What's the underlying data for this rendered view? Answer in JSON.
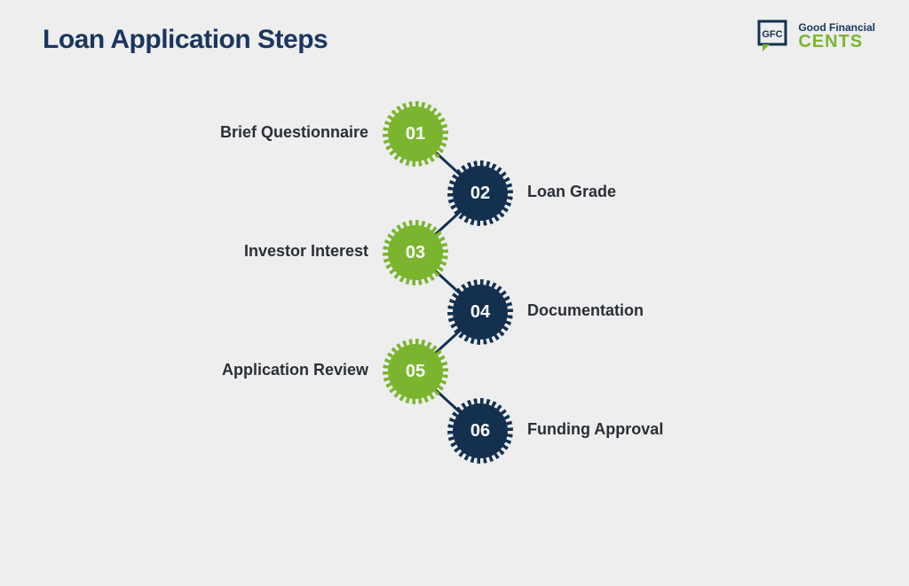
{
  "title": "Loan Application Steps",
  "logo": {
    "abbr": "GFC",
    "line1": "Good Financial",
    "line2": "CENTS"
  },
  "colors": {
    "green": "#7bb52f",
    "navy": "#14304f",
    "title": "#1a365d",
    "text": "#2a2f36",
    "bg": "#eeeeef"
  },
  "layout": {
    "leftGearX": 437,
    "rightGearX": 510,
    "startY": 0,
    "rowGap": 67,
    "gearSize": 62,
    "labelGapLeft": 22,
    "labelGapRight": 22
  },
  "steps": [
    {
      "num": "01",
      "label": "Brief Questionnaire",
      "side": "left",
      "color": "green"
    },
    {
      "num": "02",
      "label": "Loan Grade",
      "side": "right",
      "color": "navy"
    },
    {
      "num": "03",
      "label": "Investor Interest",
      "side": "left",
      "color": "green"
    },
    {
      "num": "04",
      "label": "Documentation",
      "side": "right",
      "color": "navy"
    },
    {
      "num": "05",
      "label": "Application Review",
      "side": "left",
      "color": "green"
    },
    {
      "num": "06",
      "label": "Funding Approval",
      "side": "right",
      "color": "navy"
    }
  ]
}
